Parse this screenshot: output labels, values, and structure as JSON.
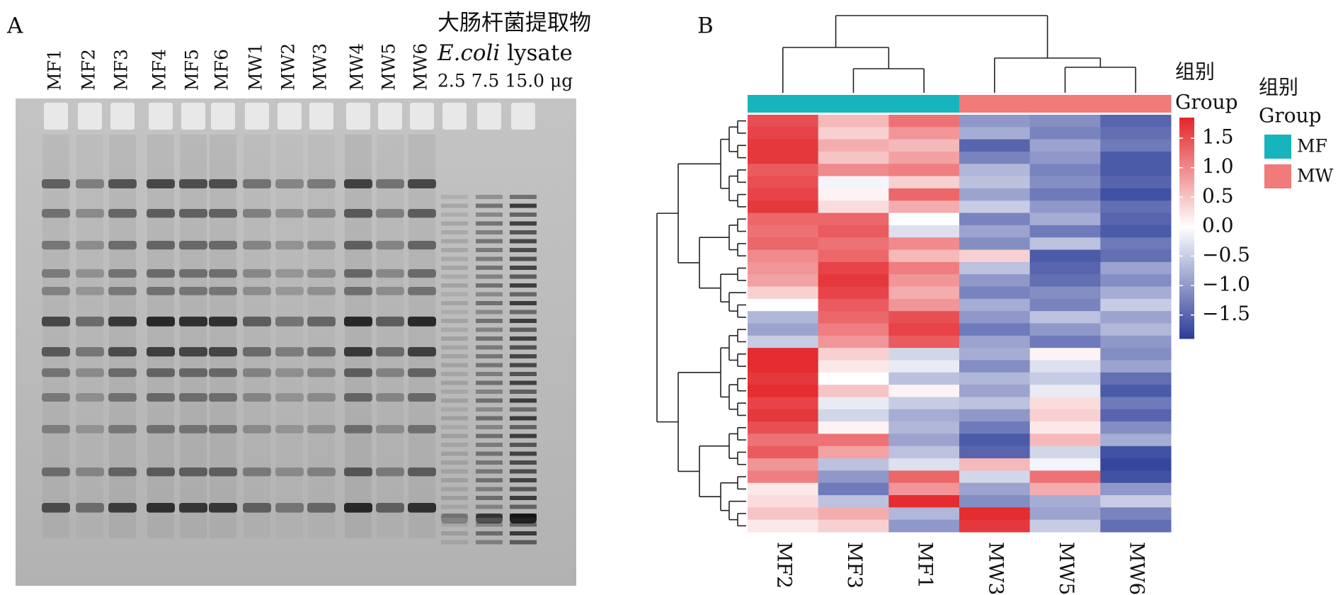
{
  "panel_a": {
    "label": "A",
    "lane_labels": [
      "MF1",
      "MF2",
      "MF3",
      "MF4",
      "MF5",
      "MF6",
      "MW1",
      "MW2",
      "MW3",
      "MW4",
      "MW5",
      "MW6"
    ],
    "lysate_title": "大肠杆菌提取物",
    "lysate_species": "E.coli",
    "lysate_word": "lysate",
    "lysate_doses": "2.5 7.5 15.0 μg"
  },
  "chart_data": {
    "type": "heatmap",
    "panel_label": "B",
    "columns": [
      "MF2",
      "MF3",
      "MF1",
      "MW3",
      "MW5",
      "MW6"
    ],
    "column_groups": [
      0,
      0,
      0,
      1,
      1,
      1
    ],
    "values": [
      [
        1.5,
        0.6,
        1.2,
        -1.0,
        -1.1,
        -1.5
      ],
      [
        1.6,
        0.4,
        0.9,
        -0.8,
        -1.2,
        -1.4
      ],
      [
        1.7,
        0.7,
        0.6,
        -1.5,
        -0.9,
        -1.3
      ],
      [
        1.7,
        0.5,
        0.8,
        -1.2,
        -1.0,
        -1.6
      ],
      [
        1.4,
        1.0,
        1.1,
        -0.7,
        -1.2,
        -1.6
      ],
      [
        1.5,
        -0.1,
        0.4,
        -0.6,
        -1.1,
        -1.5
      ],
      [
        1.6,
        0.1,
        1.3,
        -0.9,
        -1.3,
        -1.7
      ],
      [
        1.7,
        0.3,
        0.7,
        -0.5,
        -1.0,
        -1.4
      ],
      [
        1.3,
        1.3,
        0.0,
        -1.2,
        -0.8,
        -1.5
      ],
      [
        1.2,
        1.4,
        -0.3,
        -0.9,
        -1.3,
        -1.6
      ],
      [
        1.3,
        1.2,
        1.0,
        -1.1,
        -0.6,
        -1.3
      ],
      [
        1.0,
        1.3,
        0.6,
        0.4,
        -1.6,
        -1.4
      ],
      [
        0.9,
        1.6,
        1.1,
        -0.6,
        -1.5,
        -0.9
      ],
      [
        0.8,
        1.7,
        0.9,
        -1.0,
        -1.4,
        -1.1
      ],
      [
        0.4,
        1.6,
        0.7,
        -1.2,
        -1.1,
        -0.8
      ],
      [
        0.0,
        1.4,
        0.9,
        -0.8,
        -1.2,
        -0.5
      ],
      [
        -0.7,
        1.3,
        1.5,
        -1.0,
        -0.6,
        -0.9
      ],
      [
        -0.9,
        1.1,
        1.6,
        -1.3,
        -1.0,
        -0.7
      ],
      [
        -0.5,
        0.9,
        1.4,
        -0.9,
        -1.3,
        -1.0
      ],
      [
        1.8,
        0.4,
        -0.4,
        -0.8,
        0.1,
        -1.1
      ],
      [
        1.8,
        0.2,
        -0.2,
        -1.1,
        -0.3,
        -0.9
      ],
      [
        1.7,
        0.0,
        -0.6,
        -0.7,
        -0.5,
        -1.4
      ],
      [
        1.8,
        0.5,
        0.1,
        -0.9,
        -0.2,
        -1.6
      ],
      [
        1.6,
        -0.2,
        -0.5,
        -0.6,
        0.3,
        -1.3
      ],
      [
        1.7,
        -0.4,
        -0.8,
        -1.0,
        0.4,
        -1.5
      ],
      [
        1.5,
        0.1,
        -0.7,
        -1.3,
        0.2,
        -1.1
      ],
      [
        1.2,
        1.2,
        -0.9,
        -1.6,
        0.6,
        -0.8
      ],
      [
        1.4,
        0.8,
        -0.6,
        -1.5,
        -0.4,
        -1.7
      ],
      [
        0.9,
        -0.6,
        -0.3,
        0.6,
        -0.1,
        -1.8
      ],
      [
        1.1,
        -1.0,
        1.3,
        -0.4,
        1.2,
        -1.7
      ],
      [
        0.2,
        -1.3,
        0.9,
        -0.9,
        0.7,
        -1.0
      ],
      [
        0.3,
        -0.6,
        1.8,
        -1.1,
        -0.8,
        -0.5
      ],
      [
        0.5,
        0.7,
        -0.7,
        1.8,
        -0.9,
        -1.2
      ],
      [
        0.2,
        0.4,
        -1.0,
        1.7,
        -0.5,
        -1.4
      ]
    ],
    "zlim": [
      -1.9,
      1.85
    ],
    "zticks": [
      1.5,
      {
        "value": 1,
        "label": "1.0"
      },
      0.5,
      {
        "value": 0,
        "label": "0.0"
      },
      {
        "value": -0.5,
        "label": "−0.5"
      },
      {
        "value": -1,
        "label": "−1.0"
      },
      {
        "value": -1.5,
        "label": "−1.5"
      }
    ],
    "colors": {
      "low": "#2b3c98",
      "mid": "#ffffff",
      "high": "#e3262b"
    },
    "colorbar_title": [
      "组别",
      "Group"
    ],
    "legend": {
      "title": [
        "组别",
        "Group"
      ],
      "groups": [
        {
          "name": "MF",
          "color": "#16b5bd"
        },
        {
          "name": "MW",
          "color": "#f07b78"
        }
      ]
    }
  }
}
